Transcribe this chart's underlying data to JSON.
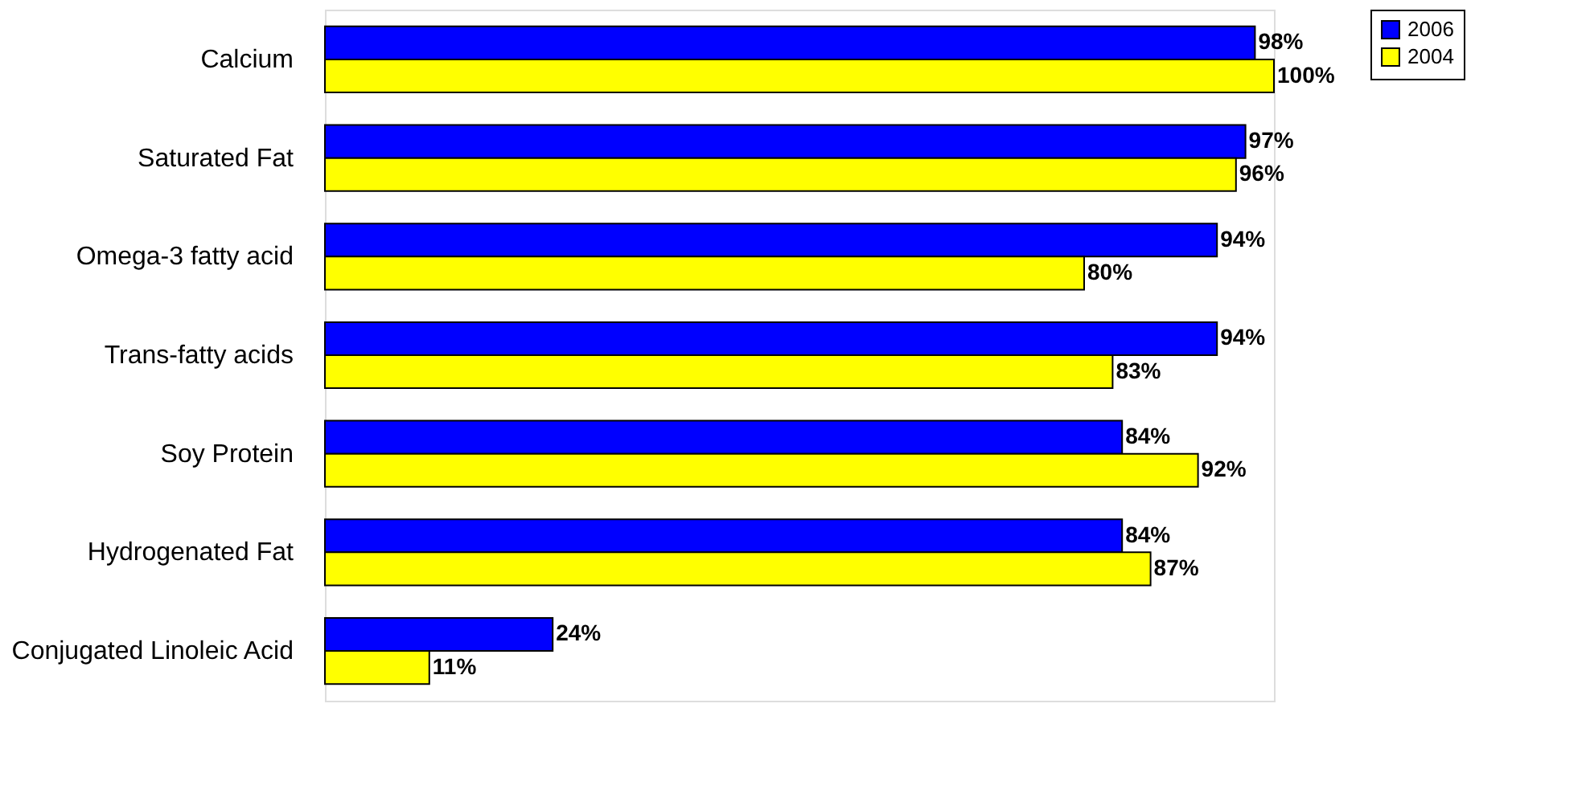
{
  "chart_data": {
    "type": "bar",
    "orientation": "horizontal",
    "legend": "right",
    "categories": [
      "Calcium",
      "Saturated Fat",
      "Omega-3 fatty acid",
      "Trans-fatty acids",
      "Soy Protein",
      "Hydrogenated Fat",
      "Conjugated Linoleic Acid"
    ],
    "series": [
      {
        "name": "2006",
        "color": "#0000ff",
        "values": [
          98,
          97,
          94,
          94,
          84,
          84,
          24
        ],
        "value_labels": [
          "98%",
          "97%",
          "94%",
          "94%",
          "84%",
          "84%",
          "24%"
        ]
      },
      {
        "name": "2004",
        "color": "#ffff00",
        "values": [
          100,
          96,
          80,
          83,
          92,
          87,
          11
        ],
        "value_labels": [
          "100%",
          "96%",
          "80%",
          "83%",
          "92%",
          "87%",
          "11%"
        ]
      }
    ]
  }
}
